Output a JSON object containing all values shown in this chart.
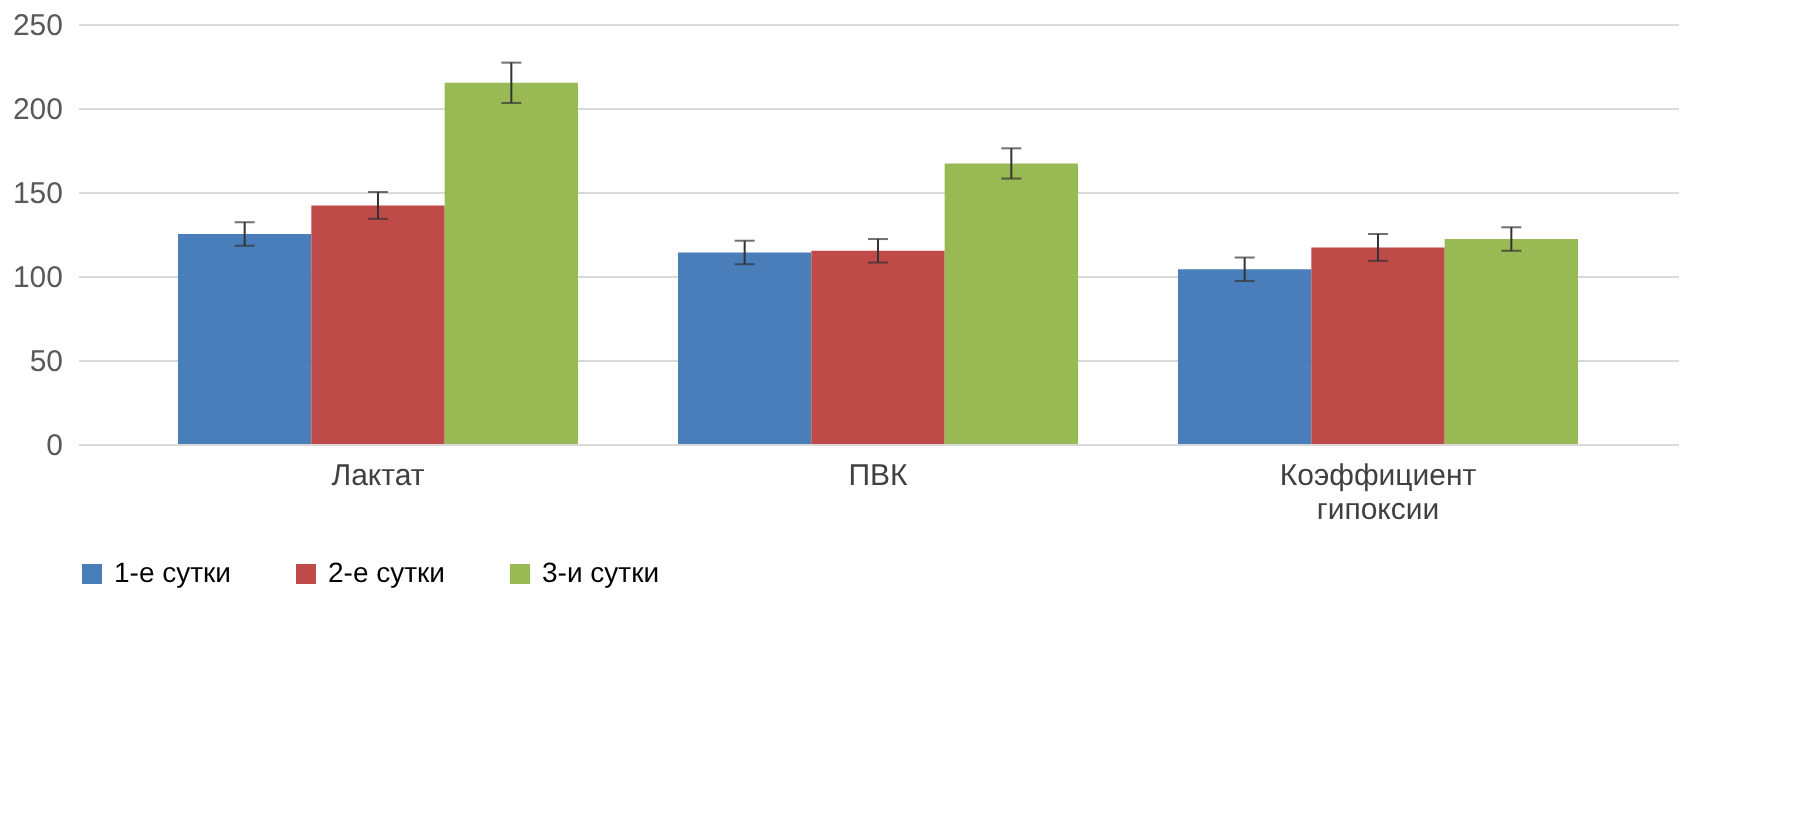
{
  "chart_data": {
    "type": "bar",
    "categories": [
      "Лактат",
      "ПВК",
      "Коэффициент гипоксии"
    ],
    "series": [
      {
        "name": "1-е сутки",
        "color": "#4a7ebb",
        "values": [
          125,
          114,
          104
        ],
        "errors": [
          7,
          7,
          7
        ]
      },
      {
        "name": "2-е сутки",
        "color": "#be4b48",
        "values": [
          142,
          115,
          117
        ],
        "errors": [
          8,
          7,
          8
        ]
      },
      {
        "name": "3-и сутки",
        "color": "#98b954",
        "values": [
          215,
          167,
          122
        ],
        "errors": [
          12,
          9,
          7
        ]
      }
    ],
    "ylim": [
      0,
      250
    ],
    "yticks": [
      0,
      50,
      100,
      150,
      200,
      250
    ],
    "grid": "y",
    "legend": "bottom"
  }
}
